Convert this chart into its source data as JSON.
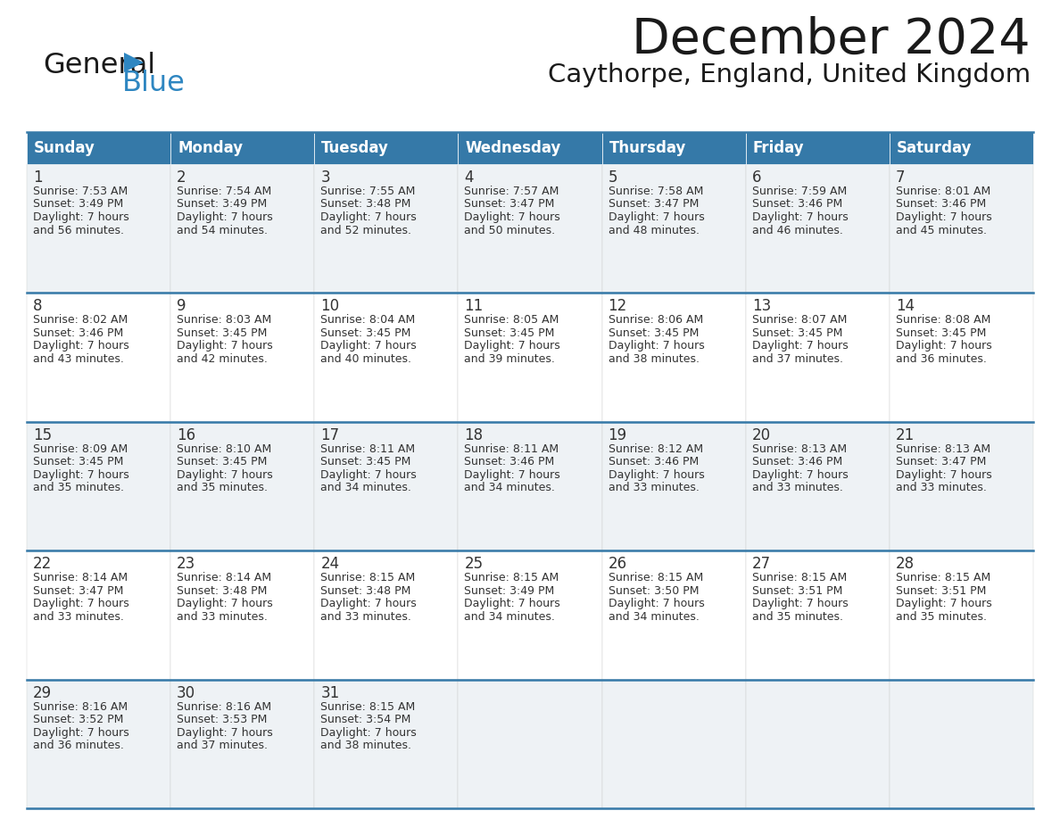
{
  "title": "December 2024",
  "subtitle": "Caythorpe, England, United Kingdom",
  "days_of_week": [
    "Sunday",
    "Monday",
    "Tuesday",
    "Wednesday",
    "Thursday",
    "Friday",
    "Saturday"
  ],
  "header_bg": "#3579A8",
  "header_color": "#FFFFFF",
  "row_bg_even": "#FFFFFF",
  "row_bg_odd": "#EEF2F5",
  "divider_color": "#3579A8",
  "text_color": "#333333",
  "cell_border_color": "#CCCCCC",
  "calendar_data": [
    {
      "day": 1,
      "col": 0,
      "row": 0,
      "sunrise": "7:53 AM",
      "sunset": "3:49 PM",
      "daylight": "7 hours and 56 minutes"
    },
    {
      "day": 2,
      "col": 1,
      "row": 0,
      "sunrise": "7:54 AM",
      "sunset": "3:49 PM",
      "daylight": "7 hours and 54 minutes"
    },
    {
      "day": 3,
      "col": 2,
      "row": 0,
      "sunrise": "7:55 AM",
      "sunset": "3:48 PM",
      "daylight": "7 hours and 52 minutes"
    },
    {
      "day": 4,
      "col": 3,
      "row": 0,
      "sunrise": "7:57 AM",
      "sunset": "3:47 PM",
      "daylight": "7 hours and 50 minutes"
    },
    {
      "day": 5,
      "col": 4,
      "row": 0,
      "sunrise": "7:58 AM",
      "sunset": "3:47 PM",
      "daylight": "7 hours and 48 minutes"
    },
    {
      "day": 6,
      "col": 5,
      "row": 0,
      "sunrise": "7:59 AM",
      "sunset": "3:46 PM",
      "daylight": "7 hours and 46 minutes"
    },
    {
      "day": 7,
      "col": 6,
      "row": 0,
      "sunrise": "8:01 AM",
      "sunset": "3:46 PM",
      "daylight": "7 hours and 45 minutes"
    },
    {
      "day": 8,
      "col": 0,
      "row": 1,
      "sunrise": "8:02 AM",
      "sunset": "3:46 PM",
      "daylight": "7 hours and 43 minutes"
    },
    {
      "day": 9,
      "col": 1,
      "row": 1,
      "sunrise": "8:03 AM",
      "sunset": "3:45 PM",
      "daylight": "7 hours and 42 minutes"
    },
    {
      "day": 10,
      "col": 2,
      "row": 1,
      "sunrise": "8:04 AM",
      "sunset": "3:45 PM",
      "daylight": "7 hours and 40 minutes"
    },
    {
      "day": 11,
      "col": 3,
      "row": 1,
      "sunrise": "8:05 AM",
      "sunset": "3:45 PM",
      "daylight": "7 hours and 39 minutes"
    },
    {
      "day": 12,
      "col": 4,
      "row": 1,
      "sunrise": "8:06 AM",
      "sunset": "3:45 PM",
      "daylight": "7 hours and 38 minutes"
    },
    {
      "day": 13,
      "col": 5,
      "row": 1,
      "sunrise": "8:07 AM",
      "sunset": "3:45 PM",
      "daylight": "7 hours and 37 minutes"
    },
    {
      "day": 14,
      "col": 6,
      "row": 1,
      "sunrise": "8:08 AM",
      "sunset": "3:45 PM",
      "daylight": "7 hours and 36 minutes"
    },
    {
      "day": 15,
      "col": 0,
      "row": 2,
      "sunrise": "8:09 AM",
      "sunset": "3:45 PM",
      "daylight": "7 hours and 35 minutes"
    },
    {
      "day": 16,
      "col": 1,
      "row": 2,
      "sunrise": "8:10 AM",
      "sunset": "3:45 PM",
      "daylight": "7 hours and 35 minutes"
    },
    {
      "day": 17,
      "col": 2,
      "row": 2,
      "sunrise": "8:11 AM",
      "sunset": "3:45 PM",
      "daylight": "7 hours and 34 minutes"
    },
    {
      "day": 18,
      "col": 3,
      "row": 2,
      "sunrise": "8:11 AM",
      "sunset": "3:46 PM",
      "daylight": "7 hours and 34 minutes"
    },
    {
      "day": 19,
      "col": 4,
      "row": 2,
      "sunrise": "8:12 AM",
      "sunset": "3:46 PM",
      "daylight": "7 hours and 33 minutes"
    },
    {
      "day": 20,
      "col": 5,
      "row": 2,
      "sunrise": "8:13 AM",
      "sunset": "3:46 PM",
      "daylight": "7 hours and 33 minutes"
    },
    {
      "day": 21,
      "col": 6,
      "row": 2,
      "sunrise": "8:13 AM",
      "sunset": "3:47 PM",
      "daylight": "7 hours and 33 minutes"
    },
    {
      "day": 22,
      "col": 0,
      "row": 3,
      "sunrise": "8:14 AM",
      "sunset": "3:47 PM",
      "daylight": "7 hours and 33 minutes"
    },
    {
      "day": 23,
      "col": 1,
      "row": 3,
      "sunrise": "8:14 AM",
      "sunset": "3:48 PM",
      "daylight": "7 hours and 33 minutes"
    },
    {
      "day": 24,
      "col": 2,
      "row": 3,
      "sunrise": "8:15 AM",
      "sunset": "3:48 PM",
      "daylight": "7 hours and 33 minutes"
    },
    {
      "day": 25,
      "col": 3,
      "row": 3,
      "sunrise": "8:15 AM",
      "sunset": "3:49 PM",
      "daylight": "7 hours and 34 minutes"
    },
    {
      "day": 26,
      "col": 4,
      "row": 3,
      "sunrise": "8:15 AM",
      "sunset": "3:50 PM",
      "daylight": "7 hours and 34 minutes"
    },
    {
      "day": 27,
      "col": 5,
      "row": 3,
      "sunrise": "8:15 AM",
      "sunset": "3:51 PM",
      "daylight": "7 hours and 35 minutes"
    },
    {
      "day": 28,
      "col": 6,
      "row": 3,
      "sunrise": "8:15 AM",
      "sunset": "3:51 PM",
      "daylight": "7 hours and 35 minutes"
    },
    {
      "day": 29,
      "col": 0,
      "row": 4,
      "sunrise": "8:16 AM",
      "sunset": "3:52 PM",
      "daylight": "7 hours and 36 minutes"
    },
    {
      "day": 30,
      "col": 1,
      "row": 4,
      "sunrise": "8:16 AM",
      "sunset": "3:53 PM",
      "daylight": "7 hours and 37 minutes"
    },
    {
      "day": 31,
      "col": 2,
      "row": 4,
      "sunrise": "8:15 AM",
      "sunset": "3:54 PM",
      "daylight": "7 hours and 38 minutes"
    }
  ],
  "num_rows": 5,
  "num_cols": 7,
  "title_fontsize": 40,
  "subtitle_fontsize": 21,
  "header_fontsize": 12,
  "day_num_fontsize": 12,
  "cell_text_fontsize": 9
}
